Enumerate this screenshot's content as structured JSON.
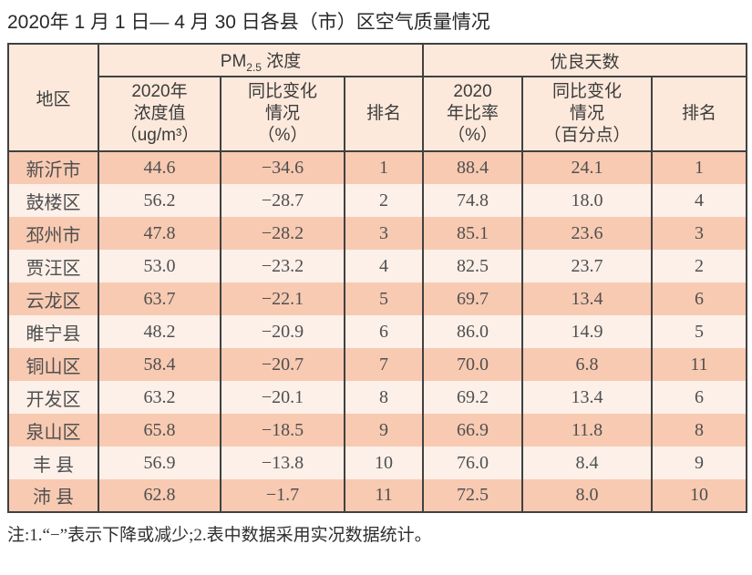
{
  "page": {
    "title": "2020年 1 月 1 日— 4 月 30 日各县（市）区空气质量情况",
    "note": "注:1.“−”表示下降或减少;2.表中数据采用实况数据统计。"
  },
  "colors": {
    "header_bg": "#fce9db",
    "row_odd_bg": "#f8cab2",
    "row_even_bg": "#fcf0e9",
    "border": "#414141",
    "text": "#3c3c3c"
  },
  "table": {
    "corner_header": "地区",
    "group_pm": {
      "prefix": "PM",
      "subscript": "2.5",
      "suffix": " 浓度"
    },
    "group_days": "优良天数",
    "sub_headers": {
      "pm_value": "2020年\n浓度值\n（ug/m³）",
      "pm_change": "同比变化\n情况\n（%）",
      "pm_rank": "排名",
      "days_ratio": "2020\n年比率\n（%）",
      "days_change": "同比变化\n情况\n（百分点）",
      "days_rank": "排名"
    },
    "rows": [
      {
        "region": "新沂市",
        "pm_value": "44.6",
        "pm_change": "−34.6",
        "pm_rank": "1",
        "days_ratio": "88.4",
        "days_change": "24.1",
        "days_rank": "1"
      },
      {
        "region": "鼓楼区",
        "pm_value": "56.2",
        "pm_change": "−28.7",
        "pm_rank": "2",
        "days_ratio": "74.8",
        "days_change": "18.0",
        "days_rank": "4"
      },
      {
        "region": "邳州市",
        "pm_value": "47.8",
        "pm_change": "−28.2",
        "pm_rank": "3",
        "days_ratio": "85.1",
        "days_change": "23.6",
        "days_rank": "3"
      },
      {
        "region": "贾汪区",
        "pm_value": "53.0",
        "pm_change": "−23.2",
        "pm_rank": "4",
        "days_ratio": "82.5",
        "days_change": "23.7",
        "days_rank": "2"
      },
      {
        "region": "云龙区",
        "pm_value": "63.7",
        "pm_change": "−22.1",
        "pm_rank": "5",
        "days_ratio": "69.7",
        "days_change": "13.4",
        "days_rank": "6"
      },
      {
        "region": "睢宁县",
        "pm_value": "48.2",
        "pm_change": "−20.9",
        "pm_rank": "6",
        "days_ratio": "86.0",
        "days_change": "14.9",
        "days_rank": "5"
      },
      {
        "region": "铜山区",
        "pm_value": "58.4",
        "pm_change": "−20.7",
        "pm_rank": "7",
        "days_ratio": "70.0",
        "days_change": "6.8",
        "days_rank": "11"
      },
      {
        "region": "开发区",
        "pm_value": "63.2",
        "pm_change": "−20.1",
        "pm_rank": "8",
        "days_ratio": "69.2",
        "days_change": "13.4",
        "days_rank": "6"
      },
      {
        "region": "泉山区",
        "pm_value": "65.8",
        "pm_change": "−18.5",
        "pm_rank": "9",
        "days_ratio": "66.9",
        "days_change": "11.8",
        "days_rank": "8"
      },
      {
        "region": "丰 县",
        "pm_value": "56.9",
        "pm_change": "−13.8",
        "pm_rank": "10",
        "days_ratio": "76.0",
        "days_change": "8.4",
        "days_rank": "9"
      },
      {
        "region": "沛 县",
        "pm_value": "62.8",
        "pm_change": "−1.7",
        "pm_rank": "11",
        "days_ratio": "72.5",
        "days_change": "8.0",
        "days_rank": "10"
      }
    ]
  }
}
